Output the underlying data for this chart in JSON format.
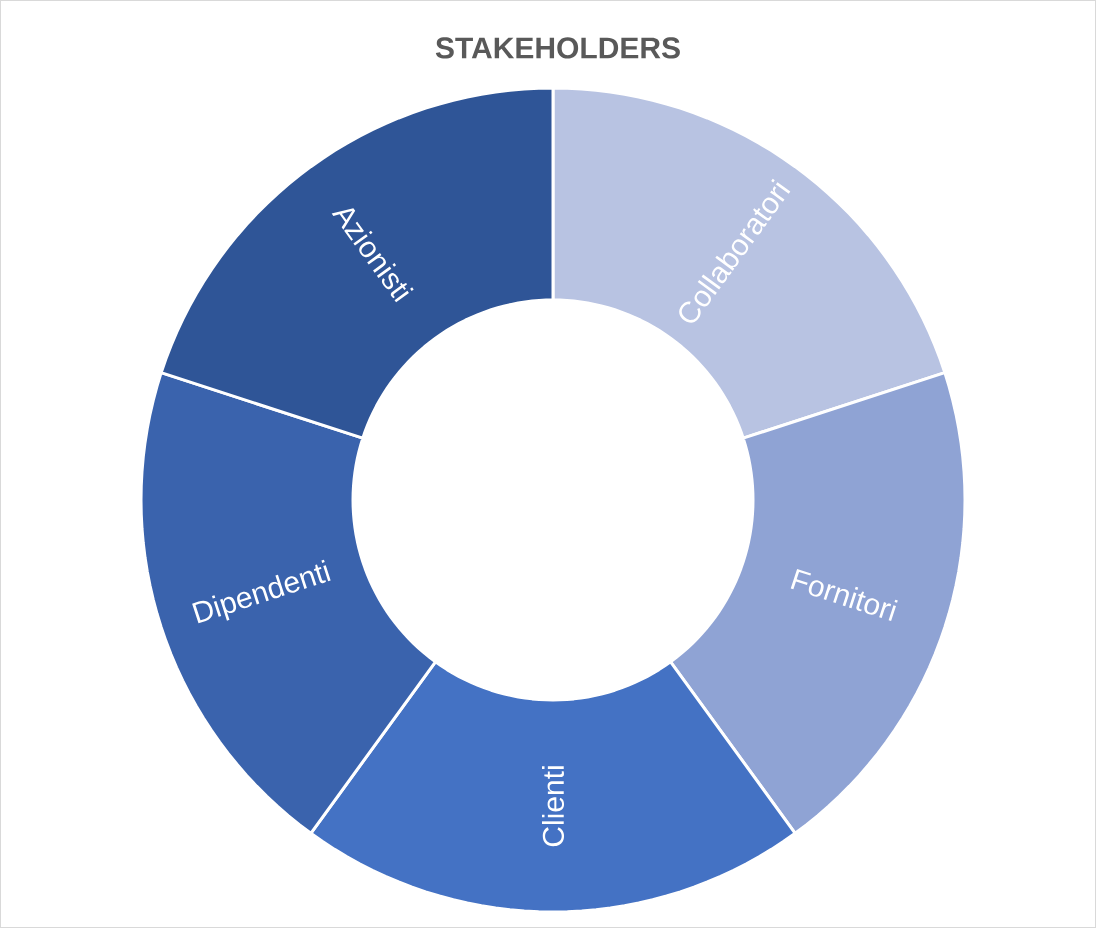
{
  "chart_data": {
    "type": "donut",
    "title": "STAKEHOLDERS",
    "categories": [
      "Collaboratori",
      "Fornitori",
      "Clienti",
      "Dipendenti",
      "Azionisti"
    ],
    "values": [
      20,
      20,
      20,
      20,
      20
    ],
    "colors": [
      "#b8c3e2",
      "#8fa3d4",
      "#4472c4",
      "#3a63ad",
      "#2f5597"
    ]
  }
}
